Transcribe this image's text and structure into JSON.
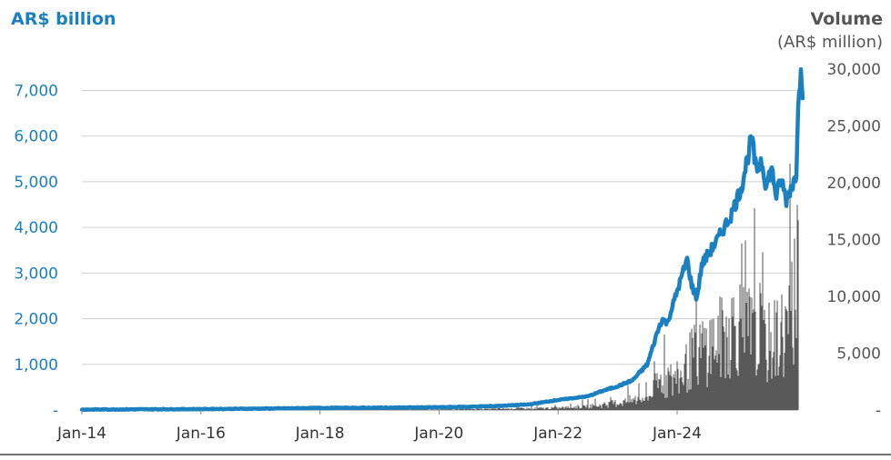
{
  "chart_data": {
    "type": "line",
    "left_axis_title": "AR$ billion",
    "right_axis_title": "Volume",
    "right_axis_subtitle": "(AR$ million)",
    "left_axis": {
      "ylim": [
        0,
        7500
      ],
      "ticks": [
        0,
        1000,
        2000,
        3000,
        4000,
        5000,
        6000,
        7000
      ],
      "tick_labels": [
        "-",
        "1,000",
        "2,000",
        "3,000",
        "4,000",
        "5,000",
        "6,000",
        "7,000"
      ]
    },
    "right_axis": {
      "ylim": [
        0,
        30000
      ],
      "ticks": [
        0,
        5000,
        10000,
        15000,
        20000,
        25000,
        30000
      ],
      "tick_labels": [
        "-",
        "5,000",
        "10,000",
        "15,000",
        "20,000",
        "25,000",
        "30,000"
      ]
    },
    "x_axis": {
      "range": [
        "2014-01",
        "2026-01"
      ],
      "tick_labels": [
        "Jan-14",
        "Jan-16",
        "Jan-18",
        "Jan-20",
        "Jan-22",
        "Jan-24"
      ],
      "tick_positions": [
        "2014-01",
        "2016-01",
        "2018-01",
        "2020-01",
        "2022-01",
        "2024-01"
      ]
    },
    "grid": true,
    "series": [
      {
        "axis": "left",
        "kind": "line",
        "color": "#1a80c0",
        "points": [
          [
            "2014-01",
            10
          ],
          [
            "2015-01",
            15
          ],
          [
            "2016-01",
            20
          ],
          [
            "2017-01",
            30
          ],
          [
            "2018-01",
            45
          ],
          [
            "2019-01",
            50
          ],
          [
            "2020-01",
            60
          ],
          [
            "2020-07",
            70
          ],
          [
            "2021-01",
            90
          ],
          [
            "2021-07",
            120
          ],
          [
            "2022-01",
            220
          ],
          [
            "2022-07",
            300
          ],
          [
            "2022-10",
            420
          ],
          [
            "2023-01",
            520
          ],
          [
            "2023-04",
            650
          ],
          [
            "2023-07",
            1000
          ],
          [
            "2023-09",
            1700
          ],
          [
            "2023-10",
            2000
          ],
          [
            "2023-11",
            1900
          ],
          [
            "2024-01",
            2600
          ],
          [
            "2024-03",
            3300
          ],
          [
            "2024-04",
            2700
          ],
          [
            "2024-05",
            2450
          ],
          [
            "2024-06",
            3200
          ],
          [
            "2024-09",
            3700
          ],
          [
            "2024-12",
            4300
          ],
          [
            "2025-02",
            4900
          ],
          [
            "2025-04",
            5950
          ],
          [
            "2025-05",
            5200
          ],
          [
            "2025-06",
            5500
          ],
          [
            "2025-07",
            4900
          ],
          [
            "2025-08",
            5300
          ],
          [
            "2025-09",
            4700
          ],
          [
            "2025-10",
            5050
          ],
          [
            "2025-11",
            4600
          ],
          [
            "2025-12",
            4900
          ],
          [
            "2026-01",
            5100
          ],
          [
            "2026-01-15",
            7100
          ],
          [
            "2026-02",
            7350
          ],
          [
            "2026-02-15",
            6950
          ]
        ]
      },
      {
        "axis": "right",
        "kind": "bar",
        "color": "#595959",
        "points": [
          [
            "2014-01",
            0
          ],
          [
            "2020-01",
            50
          ],
          [
            "2022-01",
            250
          ],
          [
            "2022-10",
            600
          ],
          [
            "2023-01",
            900
          ],
          [
            "2023-07",
            1500
          ],
          [
            "2023-10",
            4000
          ],
          [
            "2024-01",
            3500
          ],
          [
            "2024-04",
            6500
          ],
          [
            "2024-07",
            8000
          ],
          [
            "2024-10",
            9000
          ],
          [
            "2025-01",
            11000
          ],
          [
            "2025-04",
            9500
          ],
          [
            "2025-07",
            8000
          ],
          [
            "2025-10",
            9500
          ],
          [
            "2025-12",
            11000
          ],
          [
            "2026-01-15",
            20000
          ],
          [
            "2026-02",
            12000
          ],
          [
            "2026-02-15",
            6000
          ]
        ]
      }
    ]
  }
}
